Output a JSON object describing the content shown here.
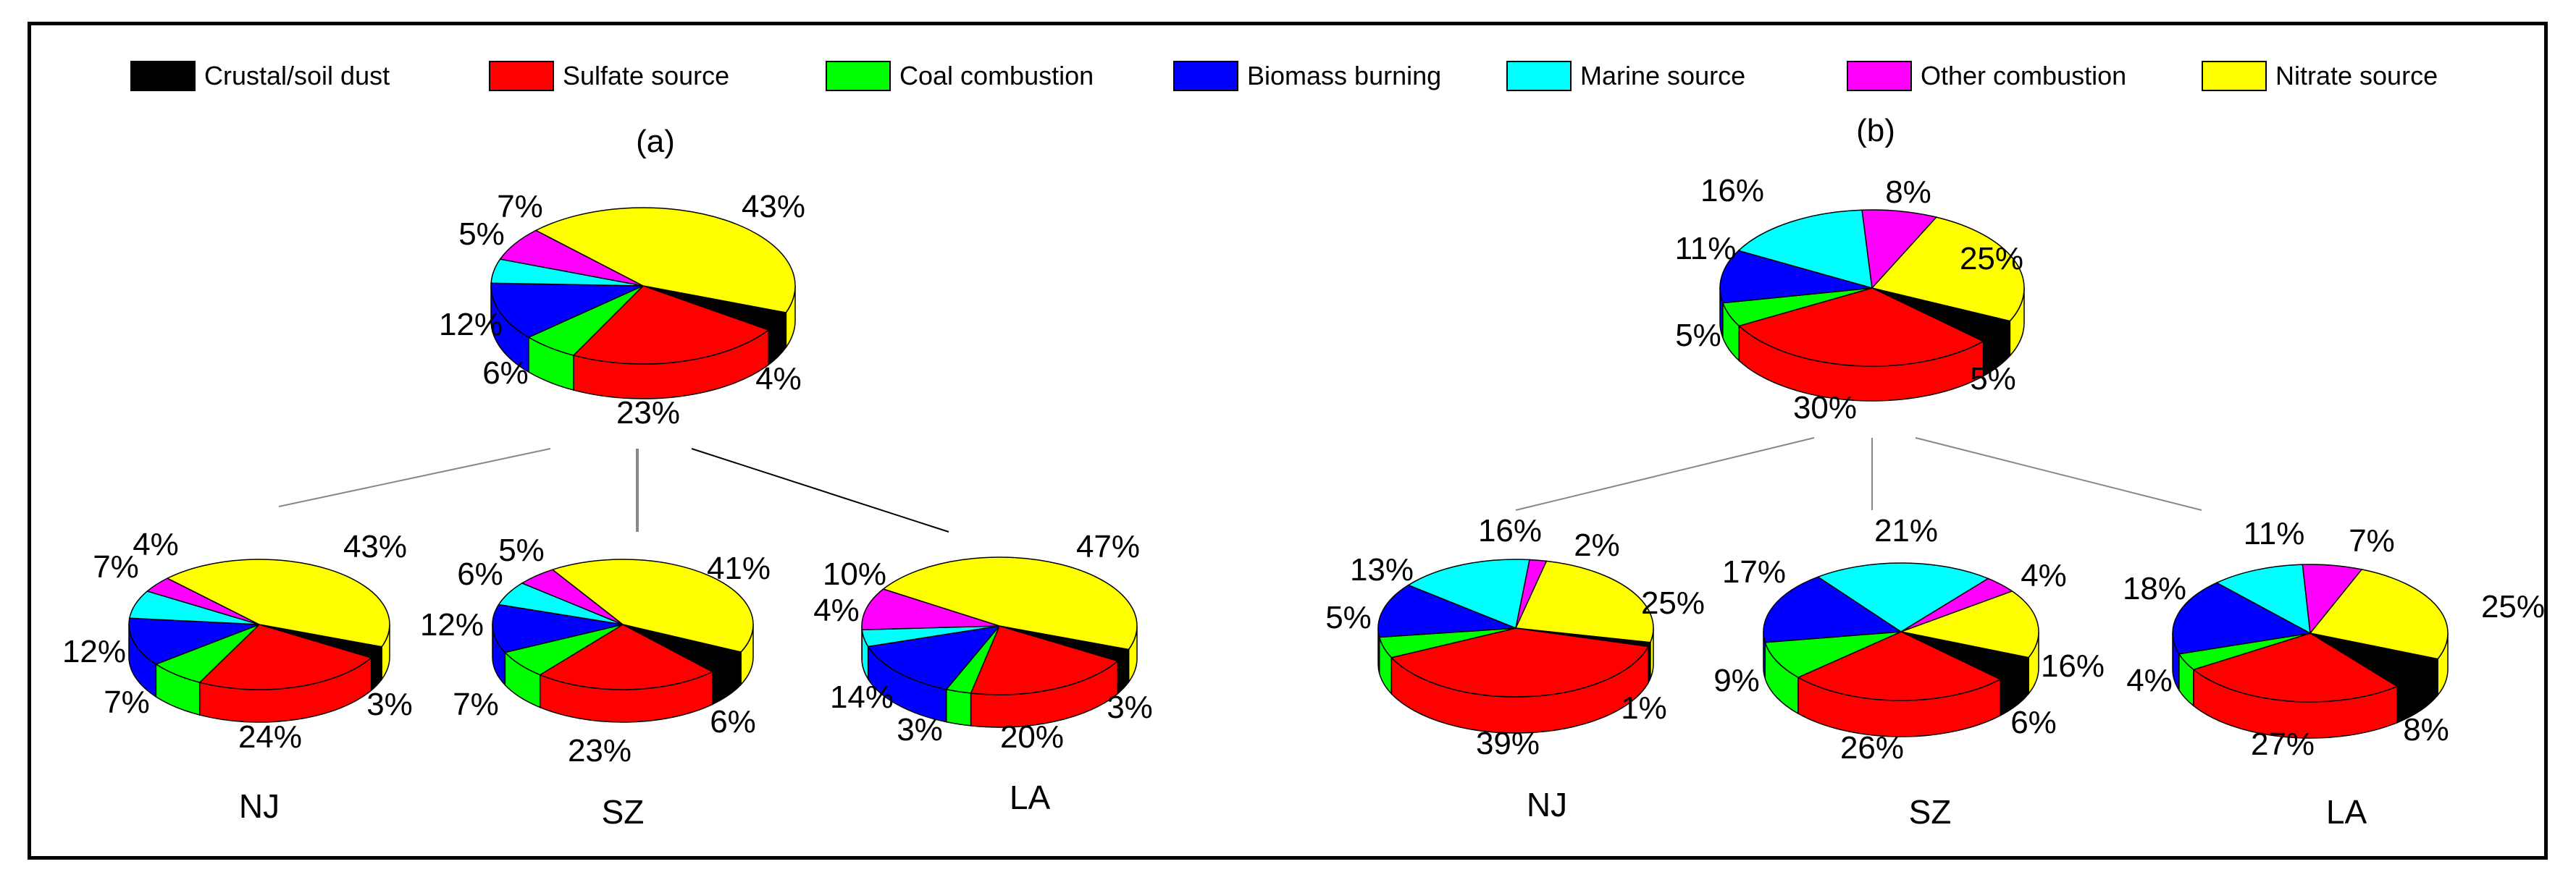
{
  "legend": [
    {
      "label": "Crustal/soil  dust",
      "color": "#000000"
    },
    {
      "label": "Sulfate source",
      "color": "#ff0000"
    },
    {
      "label": "Coal combustion",
      "color": "#00ff00"
    },
    {
      "label": "Biomass burning",
      "color": "#0000ff"
    },
    {
      "label": "Marine source",
      "color": "#00ffff"
    },
    {
      "label": "Other combustion",
      "color": "#ff00ff"
    },
    {
      "label": "Nitrate source",
      "color": "#ffff00"
    }
  ],
  "chart_data": [
    {
      "type": "pie",
      "panel": "(a)",
      "pies": [
        {
          "site": "",
          "categories": [
            "Crustal/soil  dust",
            "Sulfate source",
            "Coal combustion",
            "Biomass burning",
            "Marine source",
            "Other combustion",
            "Nitrate source"
          ],
          "values": [
            4,
            23,
            6,
            12,
            5,
            7,
            43
          ],
          "labels": [
            "4%",
            "23%",
            "6%",
            "12%",
            "5%",
            "7%",
            "43%"
          ]
        },
        {
          "site": "NJ",
          "categories": [
            "Crustal/soil  dust",
            "Sulfate source",
            "Coal combustion",
            "Biomass burning",
            "Marine source",
            "Other combustion",
            "Nitrate source"
          ],
          "values": [
            3,
            24,
            7,
            12,
            7,
            4,
            43
          ],
          "labels": [
            "3%",
            "24%",
            "7%",
            "12%",
            "7%",
            "4%",
            "43%"
          ]
        },
        {
          "site": "SZ",
          "categories": [
            "Crustal/soil  dust",
            "Sulfate source",
            "Coal combustion",
            "Biomass burning",
            "Marine source",
            "Other combustion",
            "Nitrate source"
          ],
          "values": [
            6,
            23,
            7,
            12,
            6,
            5,
            41
          ],
          "labels": [
            "6%",
            "23%",
            "7%",
            "12%",
            "6%",
            "5%",
            "41%"
          ]
        },
        {
          "site": "LA",
          "categories": [
            "Crustal/soil  dust",
            "Sulfate source",
            "Coal combustion",
            "Biomass burning",
            "Marine source",
            "Other combustion",
            "Nitrate source"
          ],
          "values": [
            3,
            20,
            3,
            14,
            4,
            10,
            47
          ],
          "labels": [
            "3%",
            "20%",
            "3%",
            "14%",
            "4%",
            "10%",
            "47%"
          ]
        }
      ]
    },
    {
      "type": "pie",
      "panel": "(b)",
      "pies": [
        {
          "site": "",
          "categories": [
            "Crustal/soil  dust",
            "Sulfate source",
            "Coal combustion",
            "Biomass burning",
            "Marine source",
            "Other combustion",
            "Nitrate source"
          ],
          "values": [
            5,
            30,
            5,
            11,
            16,
            8,
            25
          ],
          "labels": [
            "5%",
            "30%",
            "5%",
            "11%",
            "16%",
            "8%",
            "25%"
          ]
        },
        {
          "site": "NJ",
          "categories": [
            "Crustal/soil  dust",
            "Sulfate source",
            "Coal combustion",
            "Biomass burning",
            "Marine source",
            "Other combustion",
            "Nitrate source"
          ],
          "values": [
            1,
            39,
            5,
            13,
            16,
            2,
            25
          ],
          "labels": [
            "1%",
            "39%",
            "5%",
            "13%",
            "16%",
            "2%",
            "25%"
          ]
        },
        {
          "site": "SZ",
          "categories": [
            "Crustal/soil  dust",
            "Sulfate source",
            "Coal combustion",
            "Biomass burning",
            "Marine source",
            "Other combustion",
            "Nitrate source"
          ],
          "values": [
            6,
            26,
            9,
            17,
            21,
            4,
            16
          ],
          "labels": [
            "6%",
            "26%",
            "9%",
            "17%",
            "21%",
            "4%",
            "16%"
          ]
        },
        {
          "site": "LA",
          "categories": [
            "Crustal/soil  dust",
            "Sulfate source",
            "Coal combustion",
            "Biomass burning",
            "Marine source",
            "Other combustion",
            "Nitrate source"
          ],
          "values": [
            8,
            27,
            4,
            18,
            11,
            7,
            25
          ],
          "labels": [
            "8%",
            "27%",
            "4%",
            "18%",
            "11%",
            "7%",
            "25%"
          ]
        }
      ]
    }
  ]
}
